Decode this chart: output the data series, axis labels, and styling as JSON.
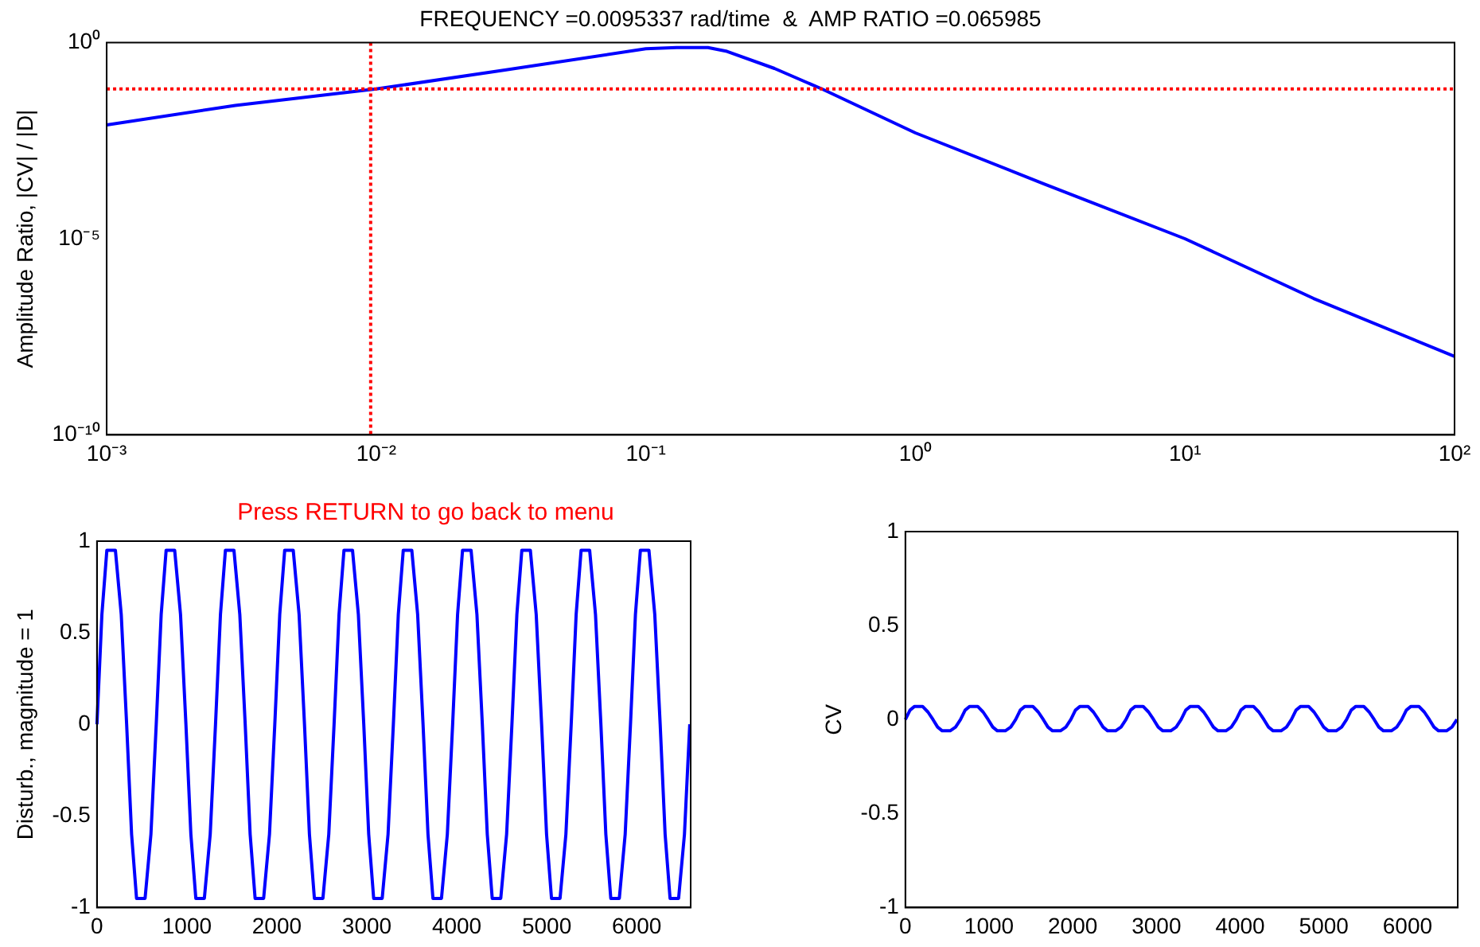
{
  "chart_data": [
    {
      "type": "line",
      "title": "FREQUENCY =0.0095337 rad/time  &  AMP RATIO =0.065985",
      "ylabel": "Amplitude Ratio, |CV| / |D|",
      "log": "xy",
      "grid": false,
      "legend": false,
      "marker": "none",
      "line_style": "solid",
      "x": [
        0.001,
        0.003,
        0.01,
        0.03,
        0.1,
        0.13,
        0.17,
        0.2,
        0.3,
        0.45,
        1,
        3,
        10,
        30,
        100
      ],
      "series": [
        {
          "color": "#0000ff",
          "values": [
            0.008,
            0.025,
            0.066,
            0.2,
            0.7,
            0.75,
            0.75,
            0.6,
            0.22,
            0.066,
            0.005,
            0.00025,
            1e-05,
            3e-07,
            1e-08
          ]
        }
      ],
      "xlim": [
        0.001,
        100
      ],
      "xticks": [
        {
          "value": 0.001,
          "label": "10⁻³"
        },
        {
          "value": 0.01,
          "label": "10⁻²"
        },
        {
          "value": 0.1,
          "label": "10⁻¹"
        },
        {
          "value": 1,
          "label": "10⁰"
        },
        {
          "value": 10,
          "label": "10¹"
        },
        {
          "value": 100,
          "label": "10²"
        }
      ],
      "ylim": [
        1e-10,
        1
      ],
      "yticks": [
        {
          "value": 1e-10,
          "label": "10⁻¹⁰"
        },
        {
          "value": 1e-05,
          "label": "10⁻⁵"
        },
        {
          "value": 1,
          "label": "10⁰"
        }
      ],
      "ref_lines": [
        {
          "axis": "x",
          "value": 0.0095337,
          "color": "#ff0000",
          "line_style": "dotted"
        },
        {
          "axis": "y",
          "value": 0.065985,
          "color": "#ff0000",
          "line_style": "dotted"
        }
      ]
    },
    {
      "type": "line",
      "ylabel": "Disturb., magnitude = 1",
      "annotations": [
        "Press RETURN to go back to menu"
      ],
      "grid": false,
      "legend": false,
      "marker": "none",
      "line_style": "solid",
      "x": [
        0,
        55,
        110,
        205,
        270,
        330,
        385,
        440,
        535,
        600,
        659,
        714,
        769,
        864,
        929,
        989,
        1044,
        1099,
        1194,
        1259,
        1318,
        1373,
        1428,
        1523,
        1588,
        1648,
        1703,
        1758,
        1853,
        1918,
        1977,
        2032,
        2087,
        2182,
        2247,
        2307,
        2362,
        2417,
        2512,
        2577,
        2636,
        2691,
        2746,
        2841,
        2906,
        2966,
        3021,
        3076,
        3171,
        3236,
        3295,
        3350,
        3405,
        3500,
        3565,
        3625,
        3680,
        3735,
        3830,
        3895,
        3954,
        4009,
        4064,
        4159,
        4224,
        4284,
        4339,
        4394,
        4489,
        4554,
        4613,
        4668,
        4723,
        4818,
        4883,
        4943,
        4998,
        5053,
        5148,
        5213,
        5272,
        5327,
        5382,
        5477,
        5542,
        5602,
        5657,
        5712,
        5807,
        5872,
        5931,
        5986,
        6041,
        6136,
        6201,
        6261,
        6316,
        6371,
        6466,
        6531,
        6590
      ],
      "series": [
        {
          "color": "#0000ff",
          "values": [
            0,
            0.6,
            0.95,
            0.95,
            0.6,
            0,
            -0.6,
            -0.95,
            -0.95,
            -0.6,
            0,
            0.6,
            0.95,
            0.95,
            0.6,
            0,
            -0.6,
            -0.95,
            -0.95,
            -0.6,
            0,
            0.6,
            0.95,
            0.95,
            0.6,
            0,
            -0.6,
            -0.95,
            -0.95,
            -0.6,
            0,
            0.6,
            0.95,
            0.95,
            0.6,
            0,
            -0.6,
            -0.95,
            -0.95,
            -0.6,
            0,
            0.6,
            0.95,
            0.95,
            0.6,
            0,
            -0.6,
            -0.95,
            -0.95,
            -0.6,
            0,
            0.6,
            0.95,
            0.95,
            0.6,
            0,
            -0.6,
            -0.95,
            -0.95,
            -0.6,
            0,
            0.6,
            0.95,
            0.95,
            0.6,
            0,
            -0.6,
            -0.95,
            -0.95,
            -0.6,
            0,
            0.6,
            0.95,
            0.95,
            0.6,
            0,
            -0.6,
            -0.95,
            -0.95,
            -0.6,
            0,
            0.6,
            0.95,
            0.95,
            0.6,
            0,
            -0.6,
            -0.95,
            -0.95,
            -0.6,
            0,
            0.6,
            0.95,
            0.95,
            0.6,
            0,
            -0.6,
            -0.95,
            -0.95,
            -0.6,
            0
          ]
        }
      ],
      "xlim": [
        0,
        6600
      ],
      "xticks": [
        0,
        1000,
        2000,
        3000,
        4000,
        5000,
        6000
      ],
      "ylim": [
        -1,
        1
      ],
      "yticks": [
        -1,
        -0.5,
        0,
        0.5,
        1
      ]
    },
    {
      "type": "line",
      "ylabel": "CV",
      "grid": false,
      "legend": false,
      "marker": "none",
      "line_style": "solid",
      "x": [
        0,
        55,
        110,
        205,
        270,
        330,
        385,
        440,
        535,
        600,
        659,
        714,
        769,
        864,
        929,
        989,
        1044,
        1099,
        1194,
        1259,
        1318,
        1373,
        1428,
        1523,
        1588,
        1648,
        1703,
        1758,
        1853,
        1918,
        1977,
        2032,
        2087,
        2182,
        2247,
        2307,
        2362,
        2417,
        2512,
        2577,
        2636,
        2691,
        2746,
        2841,
        2906,
        2966,
        3021,
        3076,
        3171,
        3236,
        3295,
        3350,
        3405,
        3500,
        3565,
        3625,
        3680,
        3735,
        3830,
        3895,
        3954,
        4009,
        4064,
        4159,
        4224,
        4284,
        4339,
        4394,
        4489,
        4554,
        4613,
        4668,
        4723,
        4818,
        4883,
        4943,
        4998,
        5053,
        5148,
        5213,
        5272,
        5327,
        5382,
        5477,
        5542,
        5602,
        5657,
        5712,
        5807,
        5872,
        5931,
        5986,
        6041,
        6136,
        6201,
        6261,
        6316,
        6371,
        6466,
        6531,
        6590
      ],
      "series": [
        {
          "color": "#0000ff",
          "values": [
            0,
            0.05,
            0.07,
            0.07,
            0.04,
            0,
            -0.04,
            -0.06,
            -0.06,
            -0.04,
            0,
            0.05,
            0.07,
            0.07,
            0.04,
            0,
            -0.04,
            -0.06,
            -0.06,
            -0.04,
            0,
            0.05,
            0.07,
            0.07,
            0.04,
            0,
            -0.04,
            -0.06,
            -0.06,
            -0.04,
            0,
            0.05,
            0.07,
            0.07,
            0.04,
            0,
            -0.04,
            -0.06,
            -0.06,
            -0.04,
            0,
            0.05,
            0.07,
            0.07,
            0.04,
            0,
            -0.04,
            -0.06,
            -0.06,
            -0.04,
            0,
            0.05,
            0.07,
            0.07,
            0.04,
            0,
            -0.04,
            -0.06,
            -0.06,
            -0.04,
            0,
            0.05,
            0.07,
            0.07,
            0.04,
            0,
            -0.04,
            -0.06,
            -0.06,
            -0.04,
            0,
            0.05,
            0.07,
            0.07,
            0.04,
            0,
            -0.04,
            -0.06,
            -0.06,
            -0.04,
            0,
            0.05,
            0.07,
            0.07,
            0.04,
            0,
            -0.04,
            -0.06,
            -0.06,
            -0.04,
            0,
            0.05,
            0.07,
            0.07,
            0.04,
            0,
            -0.04,
            -0.06,
            -0.06,
            -0.04,
            0
          ]
        }
      ],
      "xlim": [
        0,
        6600
      ],
      "xticks": [
        0,
        1000,
        2000,
        3000,
        4000,
        5000,
        6000
      ],
      "ylim": [
        -1,
        1
      ],
      "yticks": [
        -1,
        -0.5,
        0,
        0.5,
        1
      ]
    }
  ]
}
